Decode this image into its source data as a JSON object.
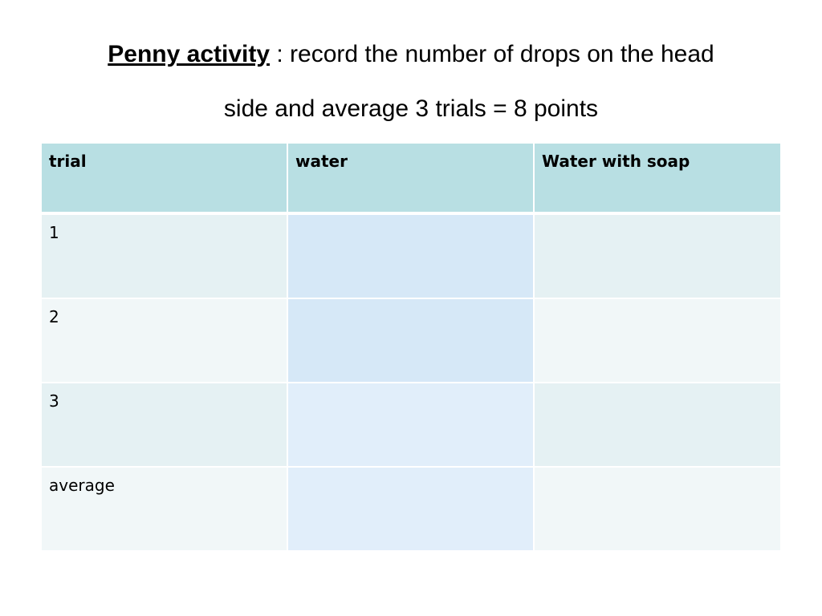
{
  "title": {
    "lead": "Penny activity",
    "rest": " :  record the number of drops on the head",
    "line2": "side and average 3 trials  = 8 points"
  },
  "table": {
    "headers": [
      "trial",
      "water",
      "Water with soap"
    ],
    "rows": [
      {
        "trial": "1",
        "water": "",
        "water_with_soap": ""
      },
      {
        "trial": "2",
        "water": "",
        "water_with_soap": ""
      },
      {
        "trial": "3",
        "water": "",
        "water_with_soap": ""
      },
      {
        "trial": "average",
        "water": "",
        "water_with_soap": ""
      }
    ]
  },
  "colors": {
    "header_bg": "#b8dfe3",
    "row_band_a": "#e5f1f3",
    "row_band_b": "#f1f7f8",
    "water_highlight_strong": "#d6e8f7",
    "water_highlight_light": "#e1eefa"
  }
}
